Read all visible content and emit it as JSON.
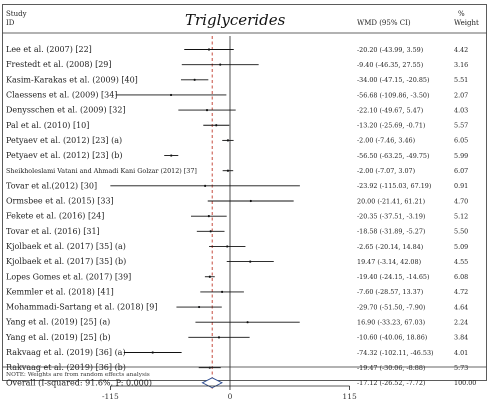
{
  "chart_data": {
    "type": "forest",
    "title": "Triglycerides",
    "header": {
      "study": "Study",
      "id": "ID",
      "effect": "WMD (95% CI)",
      "pct": "%",
      "weight": "Weight"
    },
    "studies": [
      {
        "label": "Lee et al. (2007) [22]",
        "wmd": -20.2,
        "lo": -43.99,
        "hi": 3.59,
        "ci_text": "-20.20 (-43.99, 3.59)",
        "weight": "4.42"
      },
      {
        "label": "Frestedt et al. (2008) [29]",
        "wmd": -9.4,
        "lo": -46.35,
        "hi": 27.55,
        "ci_text": "-9.40 (-46.35, 27.55)",
        "weight": "3.16"
      },
      {
        "label": "Kasim-Karakas et al. (2009) [40]",
        "wmd": -34.0,
        "lo": -47.15,
        "hi": -20.85,
        "ci_text": "-34.00 (-47.15, -20.85)",
        "weight": "5.51"
      },
      {
        "label": "Claessens et al. (2009) [34]",
        "wmd": -56.68,
        "lo": -109.86,
        "hi": -3.5,
        "ci_text": "-56.68 (-109.86, -3.50)",
        "weight": "2.07"
      },
      {
        "label": "Denysschen et al. (2009) [32]",
        "wmd": -22.1,
        "lo": -49.67,
        "hi": 5.47,
        "ci_text": "-22.10 (-49.67, 5.47)",
        "weight": "4.03"
      },
      {
        "label": "Pal et al. (2010) [10]",
        "wmd": -13.2,
        "lo": -25.69,
        "hi": -0.71,
        "ci_text": "-13.20 (-25.69, -0.71)",
        "weight": "5.57"
      },
      {
        "label": "Petyaev et al. (2012) [23] (a)",
        "wmd": -2.0,
        "lo": -7.46,
        "hi": 3.46,
        "ci_text": "-2.00 (-7.46, 3.46)",
        "weight": "6.05"
      },
      {
        "label": "Petyaev et al. (2012) [23] (b)",
        "wmd": -56.5,
        "lo": -63.25,
        "hi": -49.75,
        "ci_text": "-56.50 (-63.25, -49.75)",
        "weight": "5.99"
      },
      {
        "label": "Sheikholeslami Vatani and Ahmadi Kani Golzar (2012) [37]",
        "wmd": -2.0,
        "lo": -7.07,
        "lo_text": "",
        "hi": 3.07,
        "ci_text": "-2.00 (-7.07, 3.07)",
        "weight": "6.07"
      },
      {
        "label": "Tovar et al.(2012) [30]",
        "wmd": -23.92,
        "lo": -115.03,
        "hi": 67.19,
        "ci_text": "-23.92 (-115.03, 67.19)",
        "weight": "0.91"
      },
      {
        "label": "Ormsbee et al. (2015) [33]",
        "wmd": 20.0,
        "lo": -21.41,
        "hi": 61.21,
        "ci_text": "20.00 (-21.41, 61.21)",
        "weight": "4.70"
      },
      {
        "label": "Fekete et al. (2016) [24]",
        "wmd": -20.35,
        "lo": -37.51,
        "hi": -3.19,
        "ci_text": "-20.35 (-37.51, -3.19)",
        "weight": "5.12"
      },
      {
        "label": "Tovar et al. (2016) [31]",
        "wmd": -18.58,
        "lo": -31.89,
        "hi": -5.27,
        "ci_text": "-18.58 (-31.89, -5.27)",
        "weight": "5.50"
      },
      {
        "label": "Kjolbaek et al. (2017) [35] (a)",
        "wmd": -2.65,
        "lo": -20.14,
        "hi": 14.84,
        "ci_text": "-2.65 (-20.14, 14.84)",
        "weight": "5.09"
      },
      {
        "label": "Kjolbaek et al. (2017) [35] (b)",
        "wmd": 19.47,
        "lo": -3.14,
        "hi": 42.08,
        "ci_text": "19.47 (-3.14, 42.08)",
        "weight": "4.55"
      },
      {
        "label": "Lopes Gomes et al. (2017) [39]",
        "wmd": -19.4,
        "lo": -24.15,
        "hi": -14.65,
        "ci_text": "-19.40 (-24.15, -14.65)",
        "weight": "6.08"
      },
      {
        "label": "Kemmler et al. (2018) [41]",
        "wmd": -7.6,
        "lo": -28.57,
        "hi": 13.37,
        "ci_text": "-7.60 (-28.57, 13.37)",
        "weight": "4.72"
      },
      {
        "label": "Mohammadi-Sartang et al. (2018) [9]",
        "wmd": -29.7,
        "lo": -51.5,
        "hi": -7.9,
        "ci_text": "-29.70 (-51.50, -7.90)",
        "weight": "4.64"
      },
      {
        "label": "Yang et al. (2019) [25] (a)",
        "wmd": 16.9,
        "lo": -33.23,
        "hi": 67.03,
        "ci_text": "16.90 (-33.23, 67.03)",
        "weight": "2.24"
      },
      {
        "label": "Yang et al. (2019) [25] (b)",
        "wmd": -10.6,
        "lo": -40.06,
        "hi": 18.86,
        "ci_text": "-10.60 (-40.06, 18.86)",
        "weight": "3.84"
      },
      {
        "label": "Rakvaag et al. (2019) [36] (a)",
        "wmd": -74.32,
        "lo": -102.11,
        "hi": -46.53,
        "ci_text": "-74.32 (-102.11, -46.53)",
        "weight": "4.01"
      },
      {
        "label": "Rakvaag et al. (2019) [36] (b)",
        "wmd": -19.47,
        "lo": -30.06,
        "hi": -8.88,
        "ci_text": "-19.47 (-30.06, -8.88)",
        "weight": "5.73"
      }
    ],
    "overall": {
      "label": "Overall (I-squared: 91.6%, P: 0.000)",
      "wmd": -17.12,
      "lo": -26.52,
      "hi": -7.72,
      "ci_text": "-17.12 (-26.52, -7.72)",
      "weight": "100.00"
    },
    "note": "NOTE: Weights are from random effects analysis",
    "x_ticks": [
      {
        "value": -115,
        "label": "-115"
      },
      {
        "value": 0,
        "label": "0"
      },
      {
        "value": 115,
        "label": "115"
      }
    ],
    "xlim": [
      -115,
      115
    ]
  }
}
